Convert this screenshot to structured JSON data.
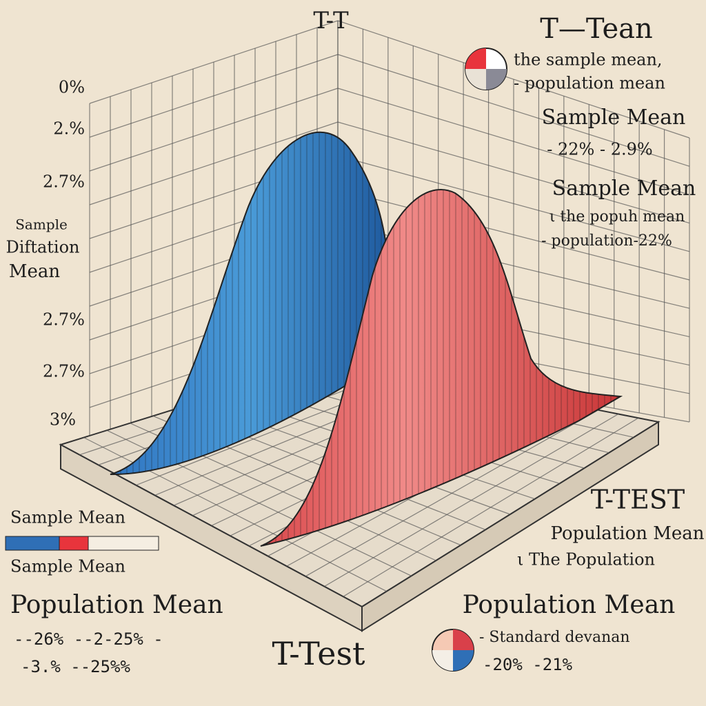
{
  "header": {
    "top_title": "T-T",
    "right_title": "T—Tean"
  },
  "top_legend": {
    "lines": [
      "the sample mean,",
      "- population mean"
    ]
  },
  "right_notes": [
    {
      "heading": "Sample Mean",
      "lines": [
        "- 22% - 2.9%"
      ]
    },
    {
      "heading": "Sample Mean",
      "lines": [
        "ι the popuh mean",
        "- population-22%"
      ]
    }
  ],
  "axis": {
    "labels": [
      "0%",
      "2.%",
      "2.7%",
      "2.7%",
      "2.7%",
      "3%"
    ],
    "title_lines": [
      "Sample",
      "Diftation",
      "Mean"
    ]
  },
  "legend": {
    "top": "Sample Mean",
    "bottom": "Sample Mean"
  },
  "bottom_left": {
    "heading": "Population Mean",
    "lines": [
      "--26% --2-25% -",
      "-3.% --25%%"
    ]
  },
  "bottom_center": {
    "title": "T-Test"
  },
  "bottom_right": {
    "heading": "T-TEST",
    "lines": [
      "Population Mean",
      "ι The Population"
    ],
    "sub_heading": "Population Mean",
    "key_lines": [
      "- Standard devanan",
      "-20% -21%"
    ]
  }
}
